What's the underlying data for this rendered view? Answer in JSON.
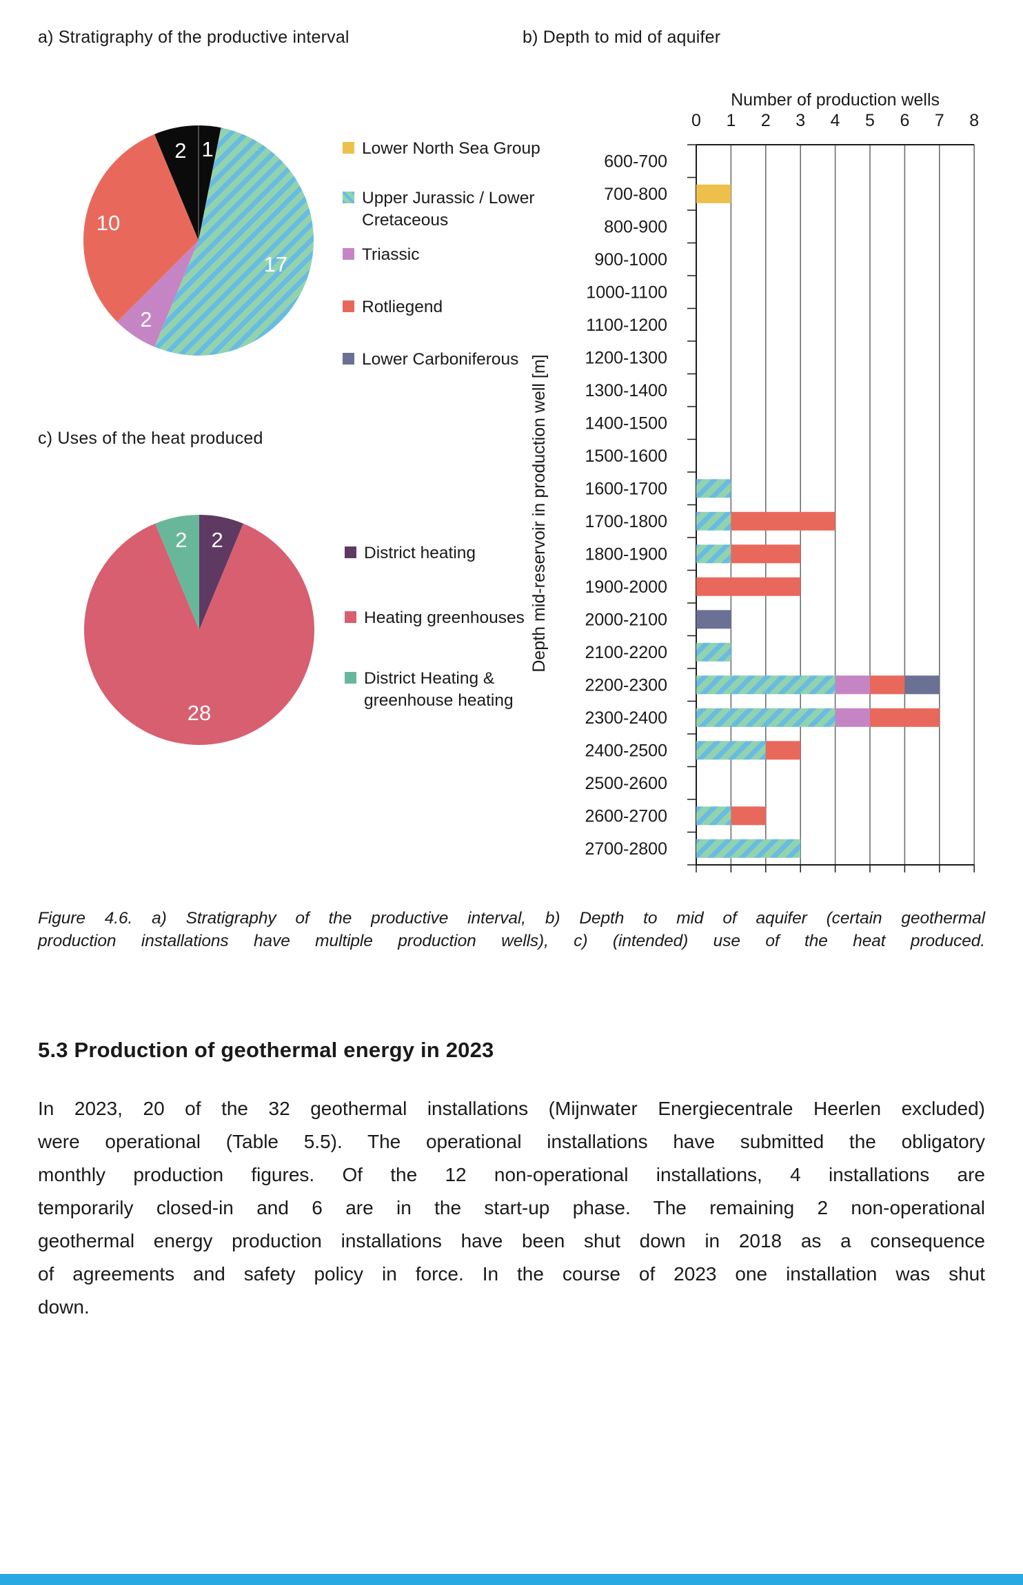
{
  "page": {
    "caption_label": "Figure 4.6.",
    "caption_lines": [
      "Figure 4.6. a) Stratigraphy of the productive interval, b) Depth to mid of aquifer (certain geothermal",
      "production installations have multiple production wells), c) (intended) use of the heat produced."
    ],
    "section_heading": "5.3 Production of geothermal energy in 2023",
    "body_lines": [
      "In 2023, 20 of the 32 geothermal installations (Mijnwater Energiecentrale Heerlen excluded)",
      "were operational (Table 5.5). The operational installations have submitted the obligatory",
      "monthly production figures. Of the 12 non-operational installations, 4 installations are",
      "temporarily closed-in and 6 are in the start-up phase. The remaining 2 non-operational",
      "geothermal energy production installations have been shut down in 2018 as a consequence",
      "of agreements and safety policy in force. In the course of 2023 one installation was shut",
      "down."
    ],
    "footer_bar_color": "#29a9e2",
    "colors": {
      "lower_north_sea_group": "#ecc04b",
      "upper_jurassic_green": "#92d3ae",
      "upper_jurassic_blue": "#68bbe3",
      "triassic": "#c585c4",
      "rotliegend": "#e8695c",
      "lower_carboniferous": "#6a7195",
      "pie_dark_slice": "#0b0b0b",
      "district_heating": "#5e3a62",
      "heating_greenhouses": "#d75f70",
      "district_and_greenhouse": "#69b79a"
    }
  },
  "chart_data": [
    {
      "id": "pie-a",
      "type": "pie",
      "title": "a) Stratigraphy of the productive interval",
      "total": 32,
      "start_angle_deg": 0,
      "direction": "clockwise",
      "top_divider": true,
      "slices": [
        {
          "label": "Lower North Sea Group",
          "value": 1,
          "fill": "#0b0b0b",
          "striped": false,
          "label_f": 0.8
        },
        {
          "label": "Upper Jurassic / Lower Cretaceous",
          "value": 17,
          "fill": "stripes",
          "striped": true,
          "label_f": 0.7
        },
        {
          "label": "Triassic",
          "value": 2,
          "fill": "#c585c4",
          "striped": false,
          "label_f": 0.82
        },
        {
          "label": "Rotliegend",
          "value": 10,
          "fill": "#e8695c",
          "striped": false,
          "label_f": 0.8
        },
        {
          "label": "Lower Carboniferous",
          "value": 2,
          "fill": "#0b0b0b",
          "striped": false,
          "label_f": 0.8
        }
      ],
      "stripe_colors": {
        "base": "#92d3ae",
        "stripe": "#68bbe3"
      },
      "legend": [
        {
          "lines": [
            "Lower North Sea Group"
          ],
          "color": "#ecc04b",
          "striped": false
        },
        {
          "lines": [
            "Upper Jurassic / Lower",
            "Cretaceous"
          ],
          "color": "#92d3ae",
          "stripe": "#68bbe3",
          "striped": true
        },
        {
          "lines": [
            "Triassic"
          ],
          "color": "#c585c4",
          "striped": false
        },
        {
          "lines": [
            "Rotliegend"
          ],
          "color": "#e8695c",
          "striped": false
        },
        {
          "lines": [
            "Lower Carboniferous"
          ],
          "color": "#6a7195",
          "striped": false
        }
      ]
    },
    {
      "id": "bar-b",
      "type": "bar",
      "stacked": true,
      "orientation": "horizontal",
      "title": "b) Depth to mid of aquifer",
      "xlabel": "Number of production wells",
      "ylabel": "Depth mid-reservoir in production well [m]",
      "xlim": [
        0,
        8
      ],
      "xticks": [
        0,
        1,
        2,
        3,
        4,
        5,
        6,
        7,
        8
      ],
      "grid": true,
      "categories": [
        "600-700",
        "700-800",
        "800-900",
        "900-1000",
        "1000-1100",
        "1100-1200",
        "1200-1300",
        "1300-1400",
        "1400-1500",
        "1500-1600",
        "1600-1700",
        "1700-1800",
        "1800-1900",
        "1900-2000",
        "2000-2100",
        "2100-2200",
        "2200-2300",
        "2300-2400",
        "2400-2500",
        "2500-2600",
        "2600-2700",
        "2700-2800"
      ],
      "stripe_colors": {
        "base": "#92d3ae",
        "stripe": "#68bbe3"
      },
      "series": [
        {
          "name": "Lower North Sea Group",
          "color": "#ecc04b",
          "striped": false,
          "values": [
            0,
            1,
            0,
            0,
            0,
            0,
            0,
            0,
            0,
            0,
            0,
            0,
            0,
            0,
            0,
            0,
            0,
            0,
            0,
            0,
            0,
            0
          ]
        },
        {
          "name": "Upper Jurassic / Lower Cretaceous",
          "color": "#92d3ae",
          "striped": true,
          "values": [
            0,
            0,
            0,
            0,
            0,
            0,
            0,
            0,
            0,
            0,
            1,
            1,
            1,
            0,
            0,
            1,
            4,
            4,
            2,
            0,
            1,
            3
          ]
        },
        {
          "name": "Triassic",
          "color": "#c585c4",
          "striped": false,
          "values": [
            0,
            0,
            0,
            0,
            0,
            0,
            0,
            0,
            0,
            0,
            0,
            0,
            0,
            0,
            0,
            0,
            1,
            1,
            0,
            0,
            0,
            0
          ]
        },
        {
          "name": "Rotliegend",
          "color": "#e8695c",
          "striped": false,
          "values": [
            0,
            0,
            0,
            0,
            0,
            0,
            0,
            0,
            0,
            0,
            0,
            3,
            2,
            3,
            0,
            0,
            1,
            2,
            1,
            0,
            1,
            0
          ]
        },
        {
          "name": "Lower Carboniferous",
          "color": "#6a7195",
          "striped": false,
          "values": [
            0,
            0,
            0,
            0,
            0,
            0,
            0,
            0,
            0,
            0,
            0,
            0,
            0,
            0,
            1,
            0,
            1,
            0,
            0,
            0,
            0,
            0
          ]
        }
      ]
    },
    {
      "id": "pie-c",
      "type": "pie",
      "title": "c) Uses of the heat produced",
      "total": 32,
      "start_angle_deg": 0,
      "direction": "clockwise",
      "top_divider": false,
      "slices": [
        {
          "label": "District heating",
          "value": 2,
          "fill": "#5e3a62",
          "striped": false,
          "label_f": 0.8
        },
        {
          "label": "Heating greenhouses",
          "value": 28,
          "fill": "#d75f70",
          "striped": false,
          "label_f": 0.72
        },
        {
          "label": "District Heating & greenhouse heating",
          "value": 2,
          "fill": "#69b79a",
          "striped": false,
          "label_f": 0.8
        }
      ],
      "legend": [
        {
          "lines": [
            "District heating"
          ],
          "color": "#5e3a62",
          "striped": false
        },
        {
          "lines": [
            "Heating greenhouses"
          ],
          "color": "#d75f70",
          "striped": false
        },
        {
          "lines": [
            "District Heating &",
            "greenhouse heating"
          ],
          "color": "#69b79a",
          "striped": false
        }
      ]
    }
  ]
}
